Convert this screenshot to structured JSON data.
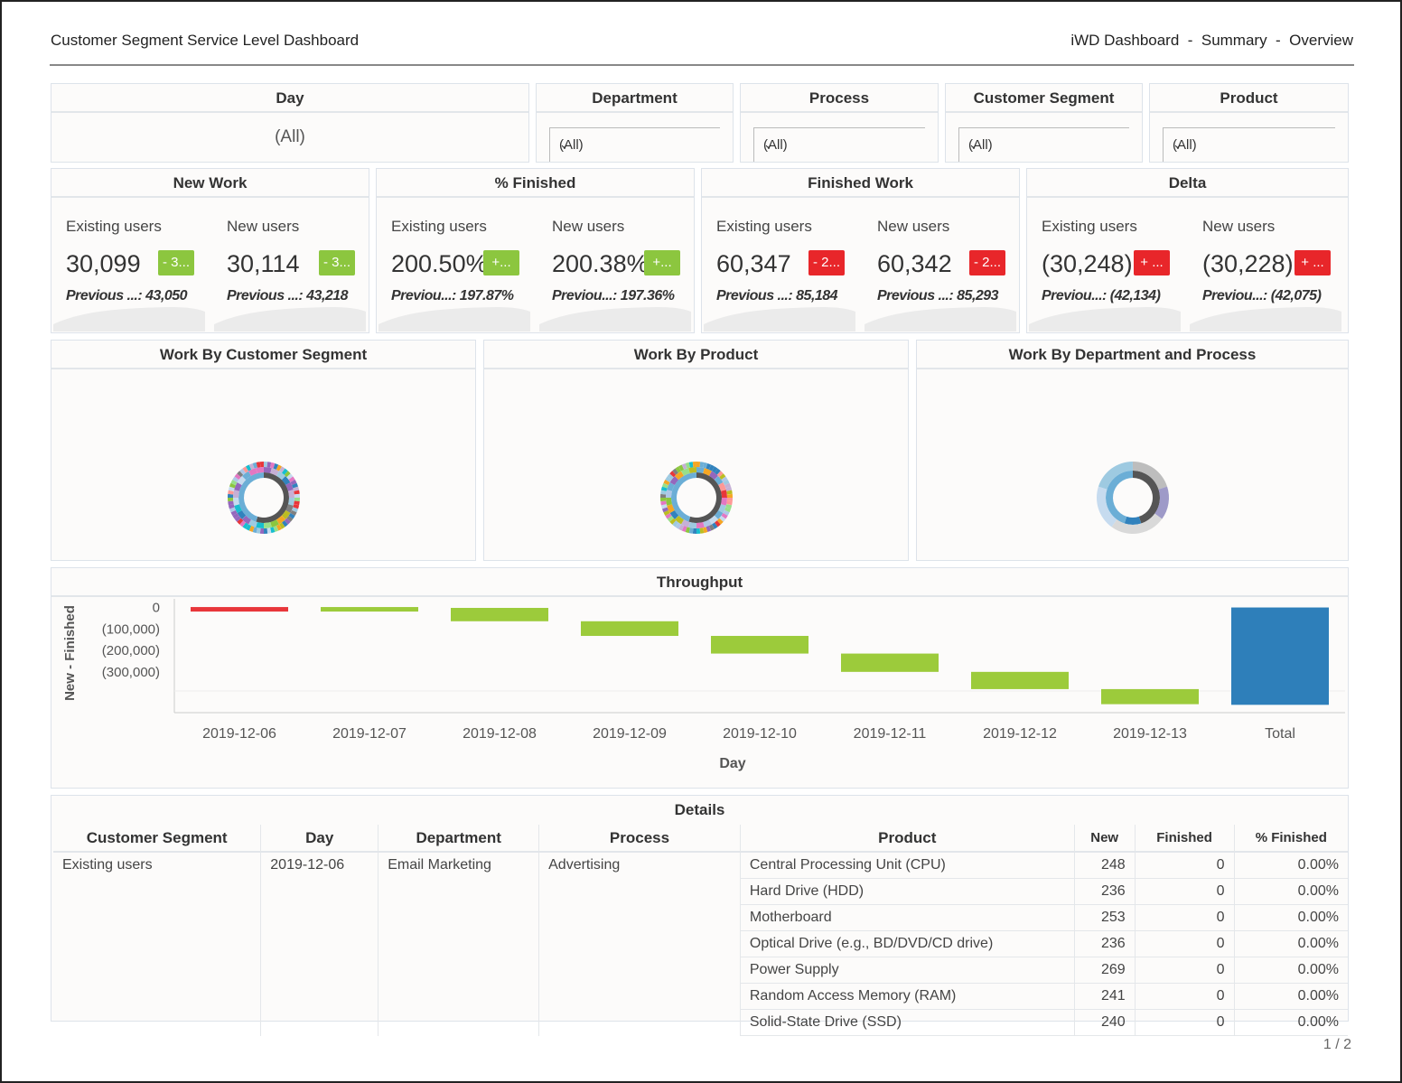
{
  "header": {
    "title": "Customer Segment Service Level Dashboard",
    "breadcrumb": "iWD Dashboard  -  Summary  -  Overview"
  },
  "filters": {
    "day": {
      "label": "Day",
      "value": "(All)"
    },
    "department": {
      "label": "Department",
      "value": "(All)"
    },
    "process": {
      "label": "Process",
      "value": "(All)"
    },
    "segment": {
      "label": "Customer Segment",
      "value": "(All)"
    },
    "product": {
      "label": "Product",
      "value": "(All)"
    }
  },
  "kpis": [
    {
      "title": "New Work",
      "cells": [
        {
          "label": "Existing users",
          "value": "30,099",
          "badge": "- 3...",
          "badge_color": "#8cc63f",
          "previous": "Previous ...: 43,050"
        },
        {
          "label": "New users",
          "value": "30,114",
          "badge": "- 3...",
          "badge_color": "#8cc63f",
          "previous": "Previous ...: 43,218"
        }
      ]
    },
    {
      "title": "% Finished",
      "cells": [
        {
          "label": "Existing users",
          "value": "200.50%",
          "badge": "+...",
          "badge_color": "#8cc63f",
          "previous": "Previou...: 197.87%"
        },
        {
          "label": "New users",
          "value": "200.38%",
          "badge": "+...",
          "badge_color": "#8cc63f",
          "previous": "Previou...: 197.36%"
        }
      ]
    },
    {
      "title": "Finished Work",
      "cells": [
        {
          "label": "Existing users",
          "value": "60,347",
          "badge": "- 2...",
          "badge_color": "#e8262a",
          "previous": "Previous ...: 85,184"
        },
        {
          "label": "New users",
          "value": "60,342",
          "badge": "- 2...",
          "badge_color": "#e8262a",
          "previous": "Previous ...: 85,293"
        }
      ]
    },
    {
      "title": "Delta",
      "cells": [
        {
          "label": "Existing users",
          "value": "(30,248)",
          "badge": "+ ...",
          "badge_color": "#e8262a",
          "previous": "Previou...: (42,134)"
        },
        {
          "label": "New users",
          "value": "(30,228)",
          "badge": "+ ...",
          "badge_color": "#e8262a",
          "previous": "Previou...: (42,075)"
        }
      ]
    }
  ],
  "donuts": [
    {
      "title": "Work By Customer Segment"
    },
    {
      "title": "Work By Product"
    },
    {
      "title": "Work By Department and Process"
    }
  ],
  "throughput": {
    "title": "Throughput"
  },
  "chart_data": {
    "type": "bar",
    "subtype": "waterfall",
    "title": "Throughput",
    "xlabel": "Day",
    "ylabel": "New - Finished",
    "categories": [
      "2019-12-06",
      "2019-12-07",
      "2019-12-08",
      "2019-12-09",
      "2019-12-10",
      "2019-12-11",
      "2019-12-12",
      "2019-12-13",
      "Total"
    ],
    "values": [
      2000,
      -4000,
      -62000,
      -68000,
      -82000,
      -85000,
      -80000,
      -70000,
      -452000
    ],
    "colors": {
      "increase": "#e8363a",
      "decrease": "#9ccb3b",
      "total": "#2e7fba"
    },
    "yticks": [
      "0",
      "(100,000)",
      "(200,000)",
      "(300,000)"
    ],
    "ytick_values": [
      0,
      -100000,
      -200000,
      -300000
    ],
    "ylim": [
      -480000,
      40000
    ]
  },
  "details": {
    "title": "Details",
    "columns": [
      "Customer Segment",
      "Day",
      "Department",
      "Process",
      "Product",
      "New",
      "Finished",
      "% Finished"
    ],
    "group": {
      "segment": "Existing users",
      "day": "2019-12-06",
      "department": "Email Marketing",
      "process": "Advertising"
    },
    "rows": [
      {
        "product": "Central Processing Unit (CPU)",
        "new": "248",
        "finished": "0",
        "pct": "0.00%"
      },
      {
        "product": "Hard Drive (HDD)",
        "new": "236",
        "finished": "0",
        "pct": "0.00%"
      },
      {
        "product": "Motherboard",
        "new": "253",
        "finished": "0",
        "pct": "0.00%"
      },
      {
        "product": "Optical Drive (e.g., BD/DVD/CD drive)",
        "new": "236",
        "finished": "0",
        "pct": "0.00%"
      },
      {
        "product": "Power Supply",
        "new": "269",
        "finished": "0",
        "pct": "0.00%"
      },
      {
        "product": "Random Access Memory (RAM)",
        "new": "241",
        "finished": "0",
        "pct": "0.00%"
      },
      {
        "product": "Solid-State Drive (SSD)",
        "new": "240",
        "finished": "0",
        "pct": "0.00%"
      }
    ]
  },
  "pager": "1 / 2"
}
